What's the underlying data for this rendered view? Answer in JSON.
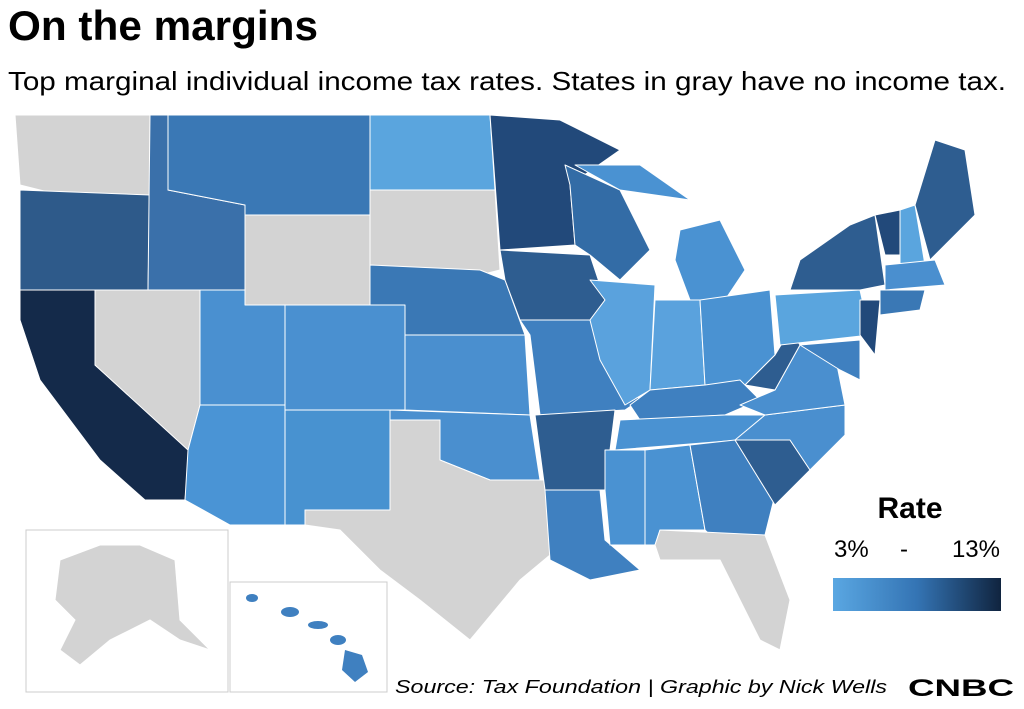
{
  "header": {
    "title": "On the margins",
    "subtitle": "Top marginal individual income tax rates. States in gray have no income tax."
  },
  "legend": {
    "title": "Rate",
    "min": "3%",
    "separator": "-",
    "max": "13%"
  },
  "footer": {
    "source": "Source: Tax Foundation | Graphic by Nick Wells",
    "logo": "CNBC"
  }
}
